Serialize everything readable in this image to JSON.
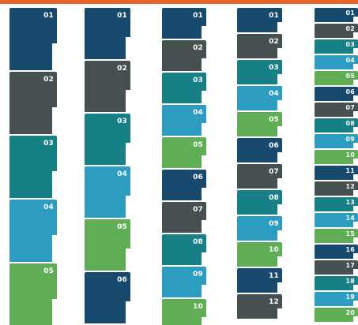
{
  "palette": {
    "navy": "#174a6c",
    "charcoal": "#465050",
    "teal": "#177f86",
    "sky": "#2c9cc0",
    "green": "#5fad55",
    "accent_bar": "#e8632a"
  },
  "columns": [
    {
      "labels": [
        "01",
        "02",
        "03",
        "04",
        "05"
      ]
    },
    {
      "labels": [
        "01",
        "02",
        "03",
        "04",
        "05",
        "06"
      ]
    },
    {
      "labels": [
        "01",
        "02",
        "03",
        "04",
        "05",
        "06",
        "07",
        "08",
        "09",
        "10"
      ]
    },
    {
      "labels": [
        "01",
        "02",
        "03",
        "04",
        "05",
        "06",
        "07",
        "08",
        "09",
        "10",
        "11",
        "12"
      ]
    },
    {
      "labels": [
        "01",
        "02",
        "03",
        "04",
        "05",
        "06",
        "07",
        "08",
        "09",
        "10",
        "11",
        "12",
        "13",
        "14",
        "15",
        "16",
        "17",
        "18",
        "19",
        "20"
      ]
    }
  ]
}
